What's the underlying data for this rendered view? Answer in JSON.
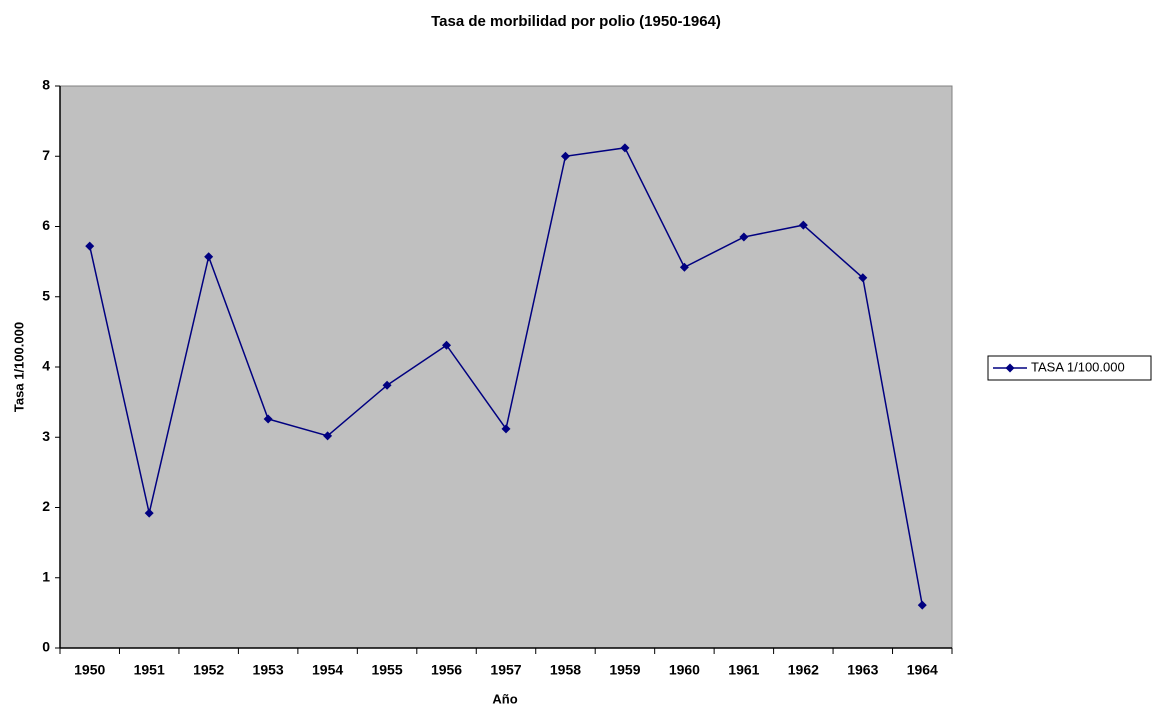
{
  "chart_data": {
    "type": "line",
    "title": "Tasa de morbilidad por polio (1950-1964)",
    "x_label": "Año",
    "y_label": "Tasa 1/100.000",
    "categories": [
      "1950",
      "1951",
      "1952",
      "1953",
      "1954",
      "1955",
      "1956",
      "1957",
      "1958",
      "1959",
      "1960",
      "1961",
      "1962",
      "1963",
      "1964"
    ],
    "series": [
      {
        "name": "TASA 1/100.000",
        "color": "#000080",
        "values": [
          5.72,
          1.92,
          5.57,
          3.26,
          3.02,
          3.74,
          4.31,
          3.12,
          7.0,
          7.12,
          5.42,
          5.85,
          6.02,
          5.27,
          0.61
        ]
      }
    ],
    "ylim": [
      0,
      8
    ],
    "yticks": [
      0,
      1,
      2,
      3,
      4,
      5,
      6,
      7,
      8
    ],
    "legend": "right",
    "plot_background": "#c0c0c0"
  }
}
